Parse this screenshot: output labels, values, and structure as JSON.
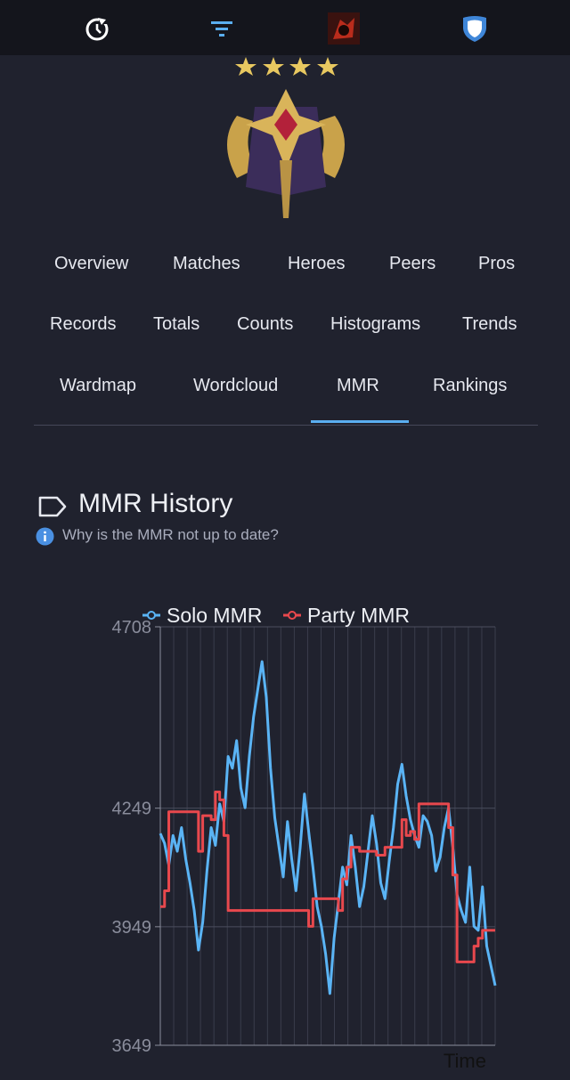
{
  "colors": {
    "accent": "#5aaef0",
    "solo": "#5ab4f5",
    "party": "#e8484d",
    "background": "#20222e"
  },
  "topbar": {
    "icons": [
      {
        "name": "refresh-icon"
      },
      {
        "name": "filter-icon"
      },
      {
        "name": "player-avatar"
      },
      {
        "name": "shield-icon"
      }
    ]
  },
  "rank": {
    "icon": "rank-medal-icon",
    "stars": 4
  },
  "tabs": {
    "row1": [
      "Overview",
      "Matches",
      "Heroes",
      "Peers",
      "Pros"
    ],
    "row2": [
      "Records",
      "Totals",
      "Counts",
      "Histograms",
      "Trends"
    ],
    "row3": [
      "Wardmap",
      "Wordcloud",
      "MMR",
      "Rankings"
    ],
    "active": "MMR"
  },
  "section": {
    "title": "MMR History",
    "info": "Why is the MMR not up to date?"
  },
  "chart_data": {
    "type": "line",
    "series": [
      {
        "name": "Solo MMR",
        "values": [
          4185,
          4160,
          4105,
          4180,
          4140,
          4200,
          4120,
          4060,
          3990,
          3890,
          3960,
          4090,
          4200,
          4155,
          4260,
          4215,
          4380,
          4350,
          4420,
          4300,
          4250,
          4380,
          4480,
          4550,
          4620,
          4530,
          4350,
          4225,
          4150,
          4075,
          4215,
          4120,
          4040,
          4150,
          4285,
          4190,
          4100,
          4000,
          3950,
          3880,
          3780,
          3920,
          4010,
          4100,
          4055,
          4180,
          4100,
          4000,
          4050,
          4140,
          4230,
          4160,
          4060,
          4020,
          4115,
          4200,
          4310,
          4360,
          4280,
          4220,
          4180,
          4150,
          4230,
          4215,
          4180,
          4090,
          4125,
          4200,
          4250,
          4150,
          4030,
          3990,
          3960,
          4100,
          3950,
          3940,
          4050,
          3900,
          3850,
          3800
        ]
      },
      {
        "name": "Party MMR",
        "values": [
          4000,
          4040,
          4240,
          4240,
          4240,
          4240,
          4240,
          4240,
          4240,
          4140,
          4230,
          4230,
          4220,
          4290,
          4270,
          4180,
          3990,
          3990,
          3990,
          3990,
          3990,
          3990,
          3990,
          3990,
          3990,
          3990,
          3990,
          3990,
          3990,
          3990,
          3990,
          3990,
          3990,
          3990,
          3990,
          3950,
          4020,
          4020,
          4020,
          4020,
          4020,
          4020,
          3990,
          4070,
          4100,
          4150,
          4150,
          4140,
          4140,
          4140,
          4140,
          4130,
          4130,
          4150,
          4150,
          4150,
          4150,
          4220,
          4180,
          4190,
          4170,
          4260,
          4260,
          4260,
          4260,
          4260,
          4260,
          4260,
          4200,
          4080,
          3860,
          3860,
          3860,
          3860,
          3900,
          3920,
          3940,
          3940,
          3940,
          3940
        ]
      }
    ],
    "yticks": [
      3649,
      3949,
      4249,
      4708
    ],
    "ylim": [
      3649,
      4708
    ],
    "xlabel": "Time",
    "grid": true,
    "legend": "top"
  }
}
